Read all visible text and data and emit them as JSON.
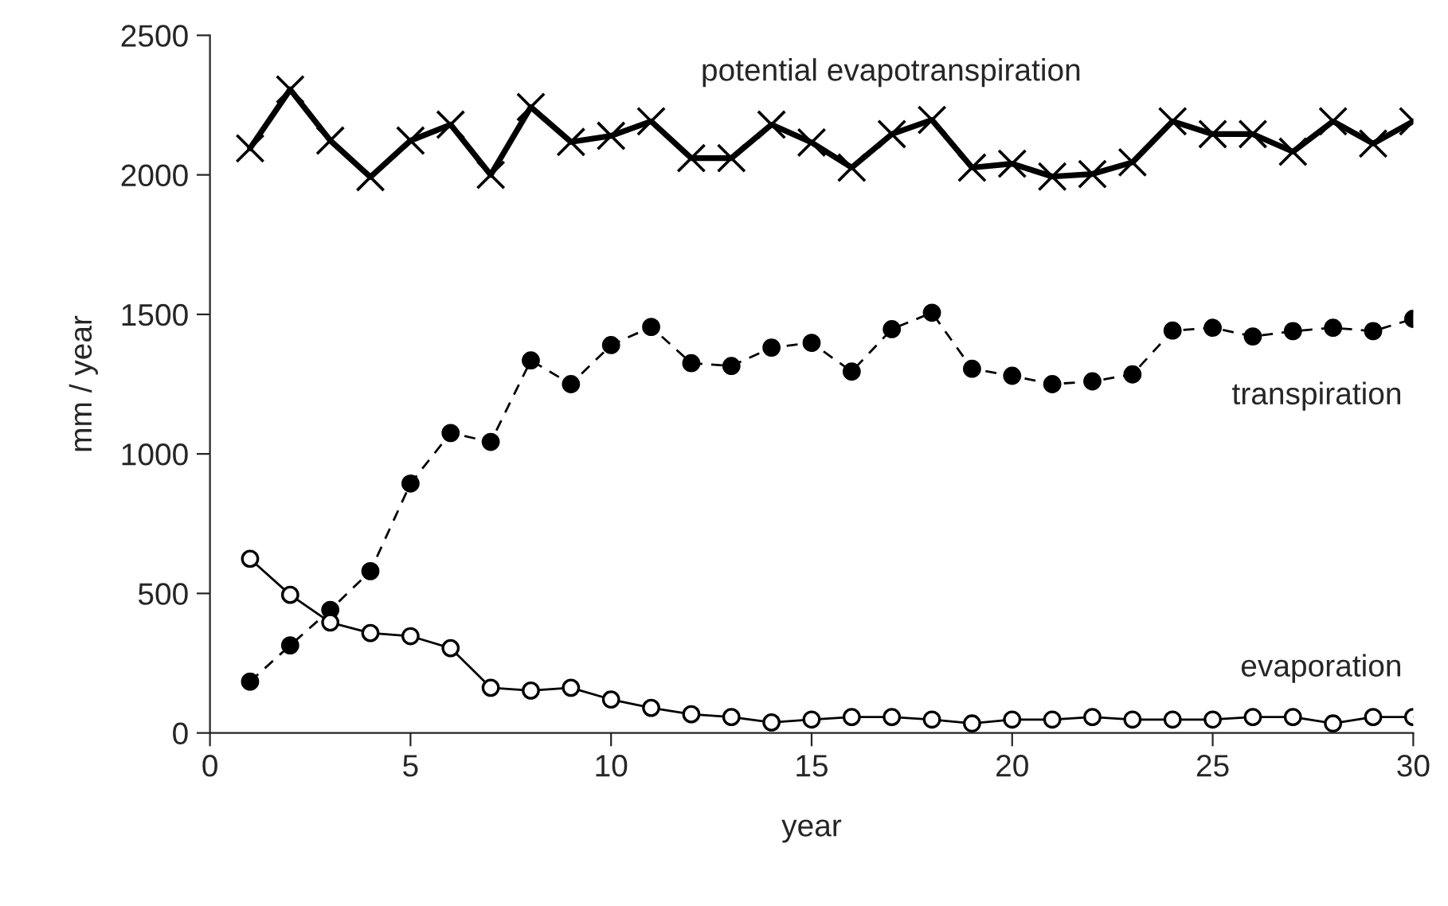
{
  "chart_data": {
    "type": "line",
    "xlabel": "year",
    "ylabel": "mm / year",
    "x": [
      1,
      2,
      3,
      4,
      5,
      6,
      7,
      8,
      9,
      10,
      11,
      12,
      13,
      14,
      15,
      16,
      17,
      18,
      19,
      20,
      21,
      22,
      23,
      24,
      25,
      26,
      27,
      28,
      29,
      30
    ],
    "series": [
      {
        "name": "potential evapotranspiration",
        "color": "#000000",
        "marker": "cross",
        "line_style": "solid",
        "values": [
          2095,
          2306,
          2123,
          1992,
          2123,
          2180,
          2000,
          2243,
          2118,
          2140,
          2192,
          2060,
          2060,
          2180,
          2116,
          2026,
          2146,
          2197,
          2026,
          2040,
          1994,
          2003,
          2045,
          2192,
          2146,
          2146,
          2083,
          2192,
          2112,
          2192
        ]
      },
      {
        "name": "transpiration",
        "color": "#000000",
        "marker": "circle",
        "line_style": "dashed",
        "values": [
          184,
          314,
          441,
          580,
          894,
          1075,
          1043,
          1335,
          1250,
          1390,
          1455,
          1325,
          1315,
          1381,
          1398,
          1295,
          1447,
          1506,
          1305,
          1280,
          1250,
          1260,
          1285,
          1442,
          1452,
          1421,
          1440,
          1452,
          1440,
          1484
        ]
      },
      {
        "name": "evaporation",
        "color": "#000000",
        "marker": "open circle",
        "line_style": "solid",
        "values": [
          624,
          495,
          396,
          358,
          347,
          304,
          162,
          152,
          162,
          120,
          90,
          67,
          57,
          38,
          48,
          57,
          57,
          48,
          34,
          48,
          48,
          57,
          48,
          48,
          48,
          57,
          57,
          34,
          57,
          57
        ]
      }
    ],
    "xlim": [
      0,
      30
    ],
    "xticks": [
      0,
      5,
      10,
      15,
      20,
      25,
      30
    ],
    "ylim": [
      0,
      2500
    ],
    "yticks": [
      0,
      500,
      1000,
      1500,
      2000,
      2500
    ],
    "grid": false,
    "legend": false
  }
}
